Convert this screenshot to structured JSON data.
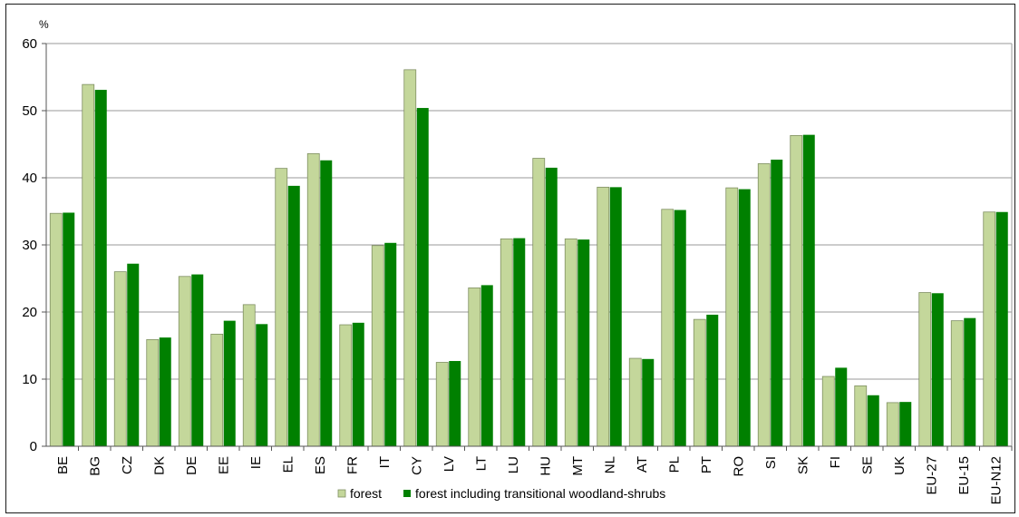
{
  "chart_data": {
    "type": "bar",
    "unit": "%",
    "categories": [
      "BE",
      "BG",
      "CZ",
      "DK",
      "DE",
      "EE",
      "IE",
      "EL",
      "ES",
      "FR",
      "IT",
      "CY",
      "LV",
      "LT",
      "LU",
      "HU",
      "MT",
      "NL",
      "AT",
      "PL",
      "PT",
      "RO",
      "SI",
      "SK",
      "FI",
      "SE",
      "UK",
      "EU-27",
      "EU-15",
      "EU-N12"
    ],
    "series": [
      {
        "name": "forest",
        "color": "#c4d79b",
        "values": [
          34.7,
          53.9,
          26.0,
          15.9,
          25.3,
          16.7,
          21.1,
          41.4,
          43.6,
          18.1,
          29.9,
          56.1,
          12.5,
          23.6,
          30.9,
          42.9,
          30.9,
          38.6,
          13.1,
          35.3,
          18.9,
          38.5,
          42.1,
          46.3,
          10.4,
          9.0,
          6.5,
          22.9,
          18.7,
          34.9
        ]
      },
      {
        "name": "forest including transitional woodland-shrubs",
        "color": "#008000",
        "values": [
          34.8,
          53.1,
          27.2,
          16.2,
          25.6,
          18.7,
          18.2,
          38.8,
          42.6,
          18.4,
          30.3,
          50.4,
          12.7,
          24.0,
          31.0,
          41.5,
          30.8,
          38.6,
          13.0,
          35.2,
          19.6,
          38.3,
          42.7,
          46.4,
          11.7,
          7.6,
          6.6,
          22.8,
          19.1,
          34.9
        ]
      }
    ],
    "ylim": [
      0,
      60
    ],
    "yticks": [
      0,
      10,
      20,
      30,
      40,
      50,
      60
    ],
    "grid": true,
    "legend_position": "bottom-center"
  }
}
